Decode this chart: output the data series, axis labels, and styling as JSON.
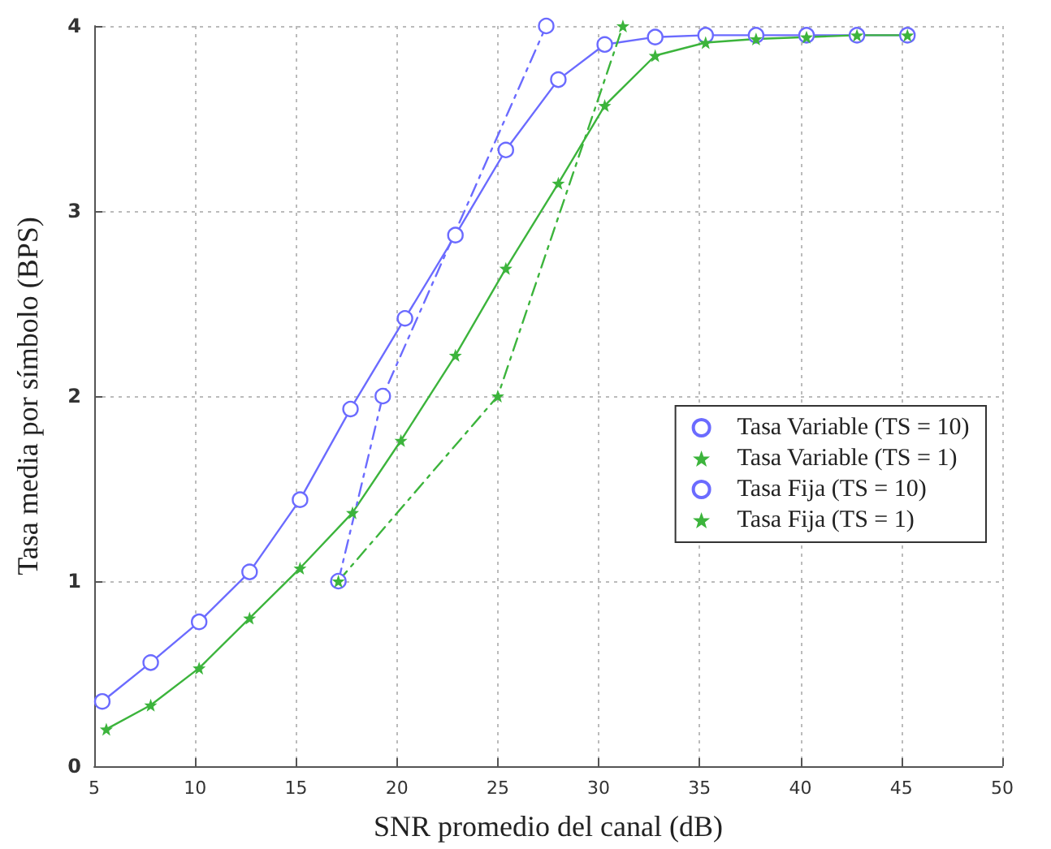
{
  "chart_data": {
    "type": "line",
    "xlabel": "SNR promedio del canal (dB)",
    "ylabel": "Tasa media por símbolo (BPS)",
    "xlim": [
      5,
      50
    ],
    "xticks": [
      5,
      10,
      15,
      20,
      25,
      30,
      35,
      40,
      45,
      50
    ],
    "ylim": [
      0,
      4
    ],
    "yticks": [
      0,
      1,
      2,
      3,
      4
    ],
    "grid": true,
    "legend": "right",
    "series": [
      {
        "name": "Tasa Variable (TS = 10)",
        "color": "#6b6bff",
        "marker": "circle",
        "line_style": "solid",
        "x": [
          5.4,
          7.8,
          10.2,
          12.7,
          15.2,
          17.7,
          20.4,
          22.9,
          25.4,
          28.0,
          30.3,
          32.8,
          35.3,
          37.8,
          40.3,
          42.8,
          45.3
        ],
        "values": [
          0.35,
          0.56,
          0.78,
          1.05,
          1.44,
          1.93,
          2.42,
          2.87,
          3.33,
          3.71,
          3.9,
          3.94,
          3.95,
          3.95,
          3.95,
          3.95,
          3.95
        ]
      },
      {
        "name": "Tasa Variable (TS = 1)",
        "color": "#3cb43c",
        "marker": "star",
        "line_style": "solid",
        "x": [
          5.6,
          7.8,
          10.2,
          12.7,
          15.2,
          17.8,
          20.2,
          22.9,
          25.4,
          28.0,
          30.3,
          32.8,
          35.3,
          37.8,
          40.3,
          42.8,
          45.3
        ],
        "values": [
          0.2,
          0.33,
          0.53,
          0.8,
          1.07,
          1.37,
          1.76,
          2.22,
          2.69,
          3.15,
          3.57,
          3.84,
          3.91,
          3.93,
          3.94,
          3.95,
          3.95
        ]
      },
      {
        "name": "Tasa Fija (TS = 10)",
        "color": "#6b6bff",
        "marker": "circle",
        "line_style": "dashed",
        "x": [
          17.1,
          19.3,
          27.4
        ],
        "values": [
          1,
          2,
          4
        ]
      },
      {
        "name": "Tasa Fija (TS = 1)",
        "color": "#3cb43c",
        "marker": "star",
        "line_style": "dashed",
        "x": [
          17.1,
          25.0,
          31.2
        ],
        "values": [
          1,
          2,
          4
        ]
      }
    ]
  }
}
